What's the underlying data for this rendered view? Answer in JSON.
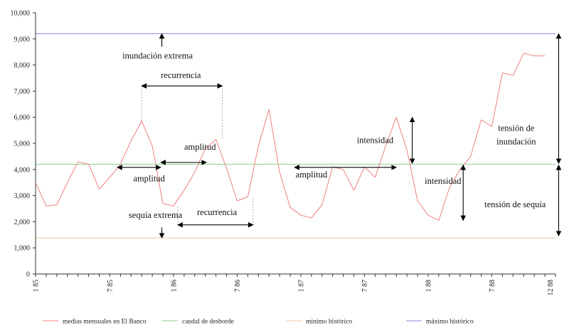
{
  "chart_data": {
    "type": "line",
    "title": "",
    "xlabel": "",
    "ylabel": "",
    "ylim": [
      0,
      10000
    ],
    "yticks": [
      0,
      1000,
      2000,
      3000,
      4000,
      5000,
      6000,
      7000,
      8000,
      9000,
      10000
    ],
    "ytick_labels": [
      "0",
      "1,000",
      "2,000",
      "3,000",
      "4,000",
      "5,000",
      "6,000",
      "7,000",
      "8,000",
      "9,000",
      "10,000"
    ],
    "xlim": [
      0,
      49
    ],
    "xtick_labels": [
      {
        "x": 0,
        "label": "1 85"
      },
      {
        "x": 7,
        "label": "7 85"
      },
      {
        "x": 13,
        "label": "1 86"
      },
      {
        "x": 19,
        "label": "7 86"
      },
      {
        "x": 25,
        "label": "1 87"
      },
      {
        "x": 31,
        "label": "7 87"
      },
      {
        "x": 37,
        "label": "1 88"
      },
      {
        "x": 43,
        "label": "7 88"
      },
      {
        "x": 48.5,
        "label": "12 88"
      }
    ],
    "grid": false,
    "legend_position": "bottom",
    "series": [
      {
        "name": "medias mensuales en El Banco",
        "color": "#f08080",
        "x": [
          0,
          1,
          2,
          3,
          4,
          5,
          6,
          7,
          8,
          9,
          10,
          11,
          12,
          13,
          14,
          15,
          16,
          17,
          18,
          19,
          20,
          21,
          22,
          23,
          24,
          25,
          26,
          27,
          28,
          29,
          30,
          31,
          32,
          33,
          34,
          35,
          36,
          37,
          38,
          39,
          40,
          41,
          42,
          43,
          44,
          45,
          46,
          47,
          48
        ],
        "values": [
          3500,
          2600,
          2650,
          3500,
          4300,
          4200,
          3250,
          3700,
          4200,
          5100,
          5850,
          4900,
          2700,
          2600,
          3200,
          3900,
          4800,
          5150,
          4050,
          2800,
          2950,
          4900,
          6300,
          3900,
          2550,
          2250,
          2150,
          2650,
          4100,
          4000,
          3200,
          4100,
          3700,
          4900,
          6000,
          4750,
          2800,
          2250,
          2050,
          3300,
          4000,
          4500,
          5900,
          5650,
          7700,
          7600,
          8450,
          8350,
          8350
        ]
      },
      {
        "name": "caudal de desborde",
        "color": "#8fcf8f",
        "x": [
          0,
          49
        ],
        "values": [
          4200,
          4200
        ]
      },
      {
        "name": "mínimo histórico",
        "color": "#f3c79a",
        "x": [
          0,
          49
        ],
        "values": [
          1380,
          1380
        ]
      },
      {
        "name": "máximo histórico",
        "color": "#8a84e0",
        "x": [
          0,
          49
        ],
        "values": [
          9200,
          9200
        ]
      }
    ],
    "annotations": [
      {
        "text": "inundación extrema",
        "x": 11.5,
        "y": 8250,
        "anchor": "middle"
      },
      {
        "text": "recurrencia",
        "x": 13.7,
        "y": 7500,
        "anchor": "middle"
      },
      {
        "text": "amplitud",
        "x": 15.5,
        "y": 4750,
        "anchor": "middle"
      },
      {
        "text": "amplitud",
        "x": 10.7,
        "y": 3550,
        "anchor": "middle"
      },
      {
        "text": "recurrencia",
        "x": 17.1,
        "y": 2250,
        "anchor": "middle"
      },
      {
        "text": "sequía extrema",
        "x": 11.3,
        "y": 2150,
        "anchor": "middle"
      },
      {
        "text": "amplitud",
        "x": 26.0,
        "y": 3700,
        "anchor": "middle"
      },
      {
        "text": "intensidad",
        "x": 32.0,
        "y": 5020,
        "anchor": "middle"
      },
      {
        "text": "intensidad",
        "x": 38.4,
        "y": 3450,
        "anchor": "middle"
      },
      {
        "text": "tensión de",
        "x": 45.3,
        "y": 5480,
        "anchor": "middle"
      },
      {
        "text": "inundación",
        "x": 45.3,
        "y": 4960,
        "anchor": "middle"
      },
      {
        "text": "tensión de sequía",
        "x": 45.2,
        "y": 2560,
        "anchor": "middle"
      }
    ],
    "arrows": [
      {
        "type": "single",
        "x1": 11.9,
        "y1": 8700,
        "x2": 11.9,
        "y2": 9200
      },
      {
        "type": "single",
        "x1": 11.9,
        "y1": 1780,
        "x2": 11.9,
        "y2": 1380
      },
      {
        "type": "double",
        "x1": 10.0,
        "y1": 7200,
        "x2": 17.6,
        "y2": 7200
      },
      {
        "type": "double",
        "x1": 11.8,
        "y1": 4270,
        "x2": 16.1,
        "y2": 4270
      },
      {
        "type": "double",
        "x1": 7.7,
        "y1": 4080,
        "x2": 11.8,
        "y2": 4080
      },
      {
        "type": "double",
        "x1": 13.4,
        "y1": 1880,
        "x2": 20.5,
        "y2": 1880
      },
      {
        "type": "double",
        "x1": 24.4,
        "y1": 4080,
        "x2": 34.0,
        "y2": 4080
      },
      {
        "type": "double",
        "x1": 35.5,
        "y1": 6000,
        "x2": 35.5,
        "y2": 4230
      },
      {
        "type": "double",
        "x1": 40.3,
        "y1": 4170,
        "x2": 40.3,
        "y2": 2050
      },
      {
        "type": "double",
        "x1": 49.3,
        "y1": 9200,
        "x2": 49.3,
        "y2": 4230
      },
      {
        "type": "double",
        "x1": 49.3,
        "y1": 4170,
        "x2": 49.3,
        "y2": 1460
      }
    ],
    "guides": [
      {
        "x1": 10.0,
        "y1": 7200,
        "x2": 10.0,
        "y2": 5850
      },
      {
        "x1": 17.6,
        "y1": 7200,
        "x2": 17.6,
        "y2": 5150
      },
      {
        "x1": 13.4,
        "y1": 1880,
        "x2": 13.4,
        "y2": 2600
      },
      {
        "x1": 20.5,
        "y1": 1880,
        "x2": 20.5,
        "y2": 2950
      }
    ]
  }
}
